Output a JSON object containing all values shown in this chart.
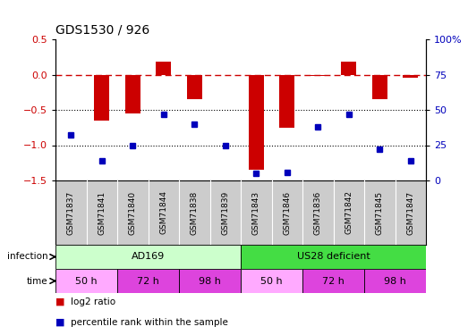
{
  "title": "GDS1530 / 926",
  "samples": [
    "GSM71837",
    "GSM71841",
    "GSM71840",
    "GSM71844",
    "GSM71838",
    "GSM71839",
    "GSM71843",
    "GSM71846",
    "GSM71836",
    "GSM71842",
    "GSM71845",
    "GSM71847"
  ],
  "log2_ratio": [
    0.0,
    -0.65,
    -0.55,
    0.18,
    -0.35,
    0.0,
    -1.35,
    -0.75,
    -0.02,
    0.18,
    -0.35,
    -0.05
  ],
  "percentile_rank": [
    32,
    14,
    25,
    47,
    40,
    25,
    5,
    6,
    38,
    47,
    22,
    14
  ],
  "ylim_left": [
    -1.5,
    0.5
  ],
  "ylim_right": [
    0,
    100
  ],
  "yticks_left": [
    -1.5,
    -1.0,
    -0.5,
    0.0,
    0.5
  ],
  "yticks_right": [
    0,
    25,
    50,
    75,
    100
  ],
  "bar_color": "#cc0000",
  "dot_color": "#0000bb",
  "dashed_line_color": "#cc0000",
  "dotted_line_color": "#000000",
  "infection_groups": [
    {
      "label": "AD169",
      "start": 0,
      "end": 6,
      "color": "#ccffcc"
    },
    {
      "label": "US28 deficient",
      "start": 6,
      "end": 12,
      "color": "#44dd44"
    }
  ],
  "time_groups": [
    {
      "label": "50 h",
      "start": 0,
      "end": 2,
      "color": "#ffaaff"
    },
    {
      "label": "72 h",
      "start": 2,
      "end": 4,
      "color": "#dd44dd"
    },
    {
      "label": "98 h",
      "start": 4,
      "end": 6,
      "color": "#dd44dd"
    },
    {
      "label": "50 h",
      "start": 6,
      "end": 8,
      "color": "#ffaaff"
    },
    {
      "label": "72 h",
      "start": 8,
      "end": 10,
      "color": "#dd44dd"
    },
    {
      "label": "98 h",
      "start": 10,
      "end": 12,
      "color": "#dd44dd"
    }
  ],
  "bg_color": "#ffffff",
  "left_label_color": "#cc0000",
  "right_label_color": "#0000bb",
  "sample_box_color": "#cccccc",
  "legend_square_size": 8,
  "bar_width": 0.5
}
